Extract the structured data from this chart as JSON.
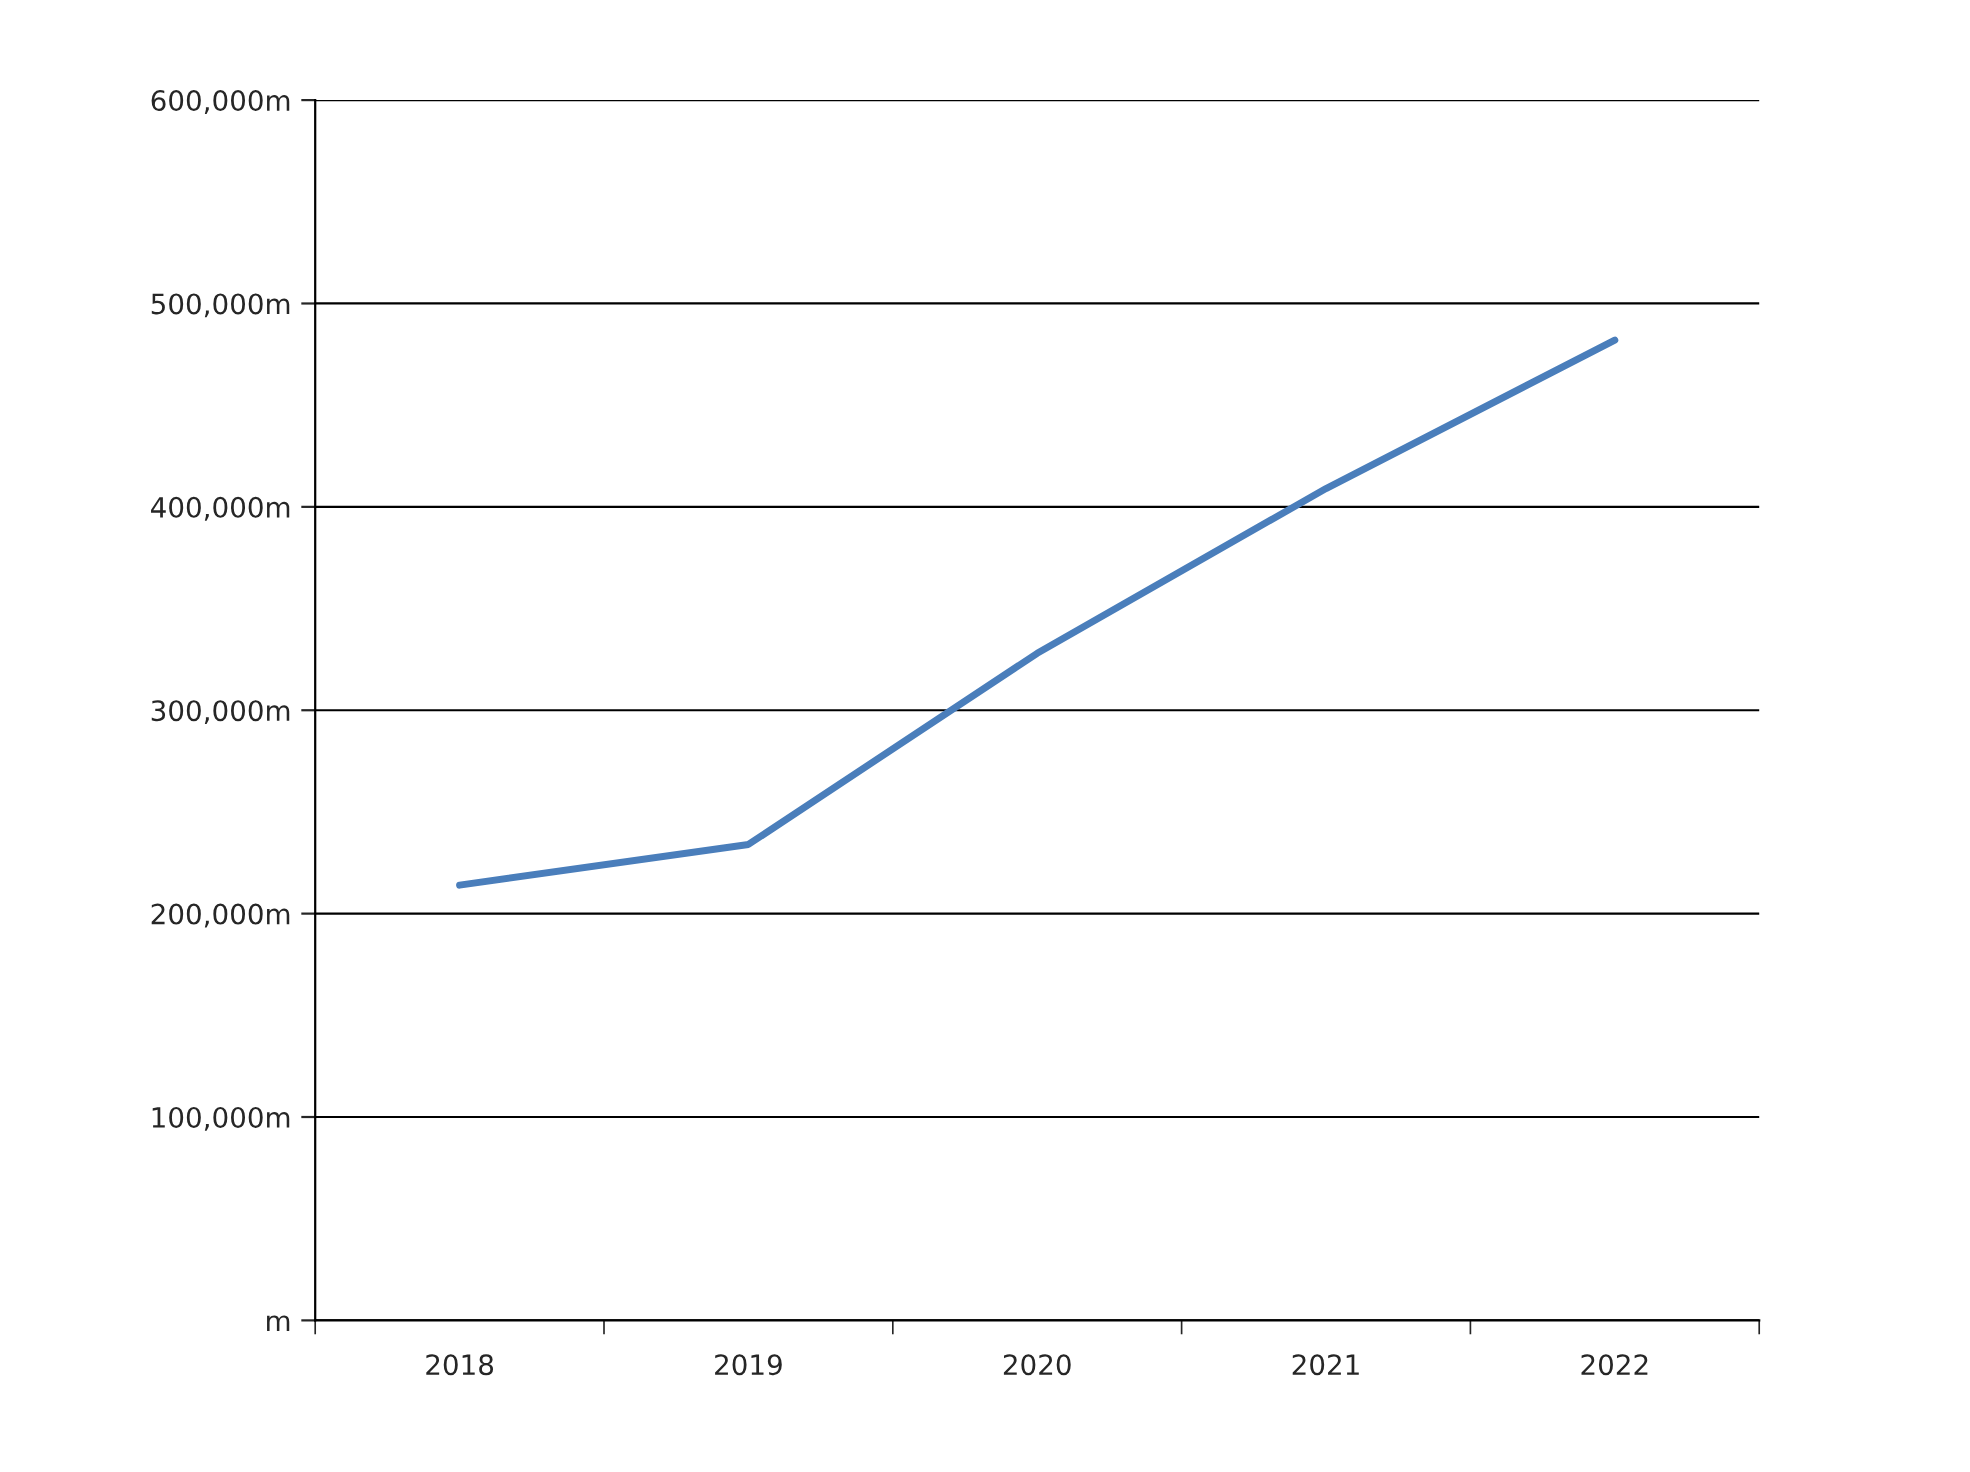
{
  "chart_data": {
    "type": "line",
    "categories": [
      "2018",
      "2019",
      "2020",
      "2021",
      "2022"
    ],
    "series": [
      {
        "color": "#4a7ebb",
        "values": [
          214000,
          234000,
          328000,
          409000,
          482000
        ]
      }
    ],
    "ylim": [
      0,
      600000
    ],
    "yticks": [
      {
        "value": 0,
        "label": "m"
      },
      {
        "value": 100000,
        "label": "100,000m"
      },
      {
        "value": 200000,
        "label": "200,000m"
      },
      {
        "value": 300000,
        "label": "300,000m"
      },
      {
        "value": 400000,
        "label": "400,000m"
      },
      {
        "value": 500000,
        "label": "500,000m"
      },
      {
        "value": 600000,
        "label": "600,000m"
      }
    ],
    "grid": "y",
    "marker": "none",
    "line_style": "solid"
  }
}
